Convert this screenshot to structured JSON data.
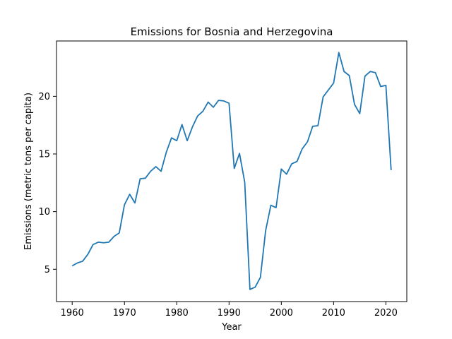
{
  "chart_data": {
    "type": "line",
    "title": "Emissions for Bosnia and Herzegovina",
    "xlabel": "Year",
    "ylabel": "Emissions (metric tons per capita)",
    "xlim": [
      1957,
      2024
    ],
    "ylim": [
      2.2,
      24.8
    ],
    "x_ticks": [
      1960,
      1970,
      1980,
      1990,
      2000,
      2010,
      2020
    ],
    "y_ticks": [
      5,
      10,
      15,
      20
    ],
    "grid": false,
    "line_color": "#1f77b4",
    "series": [
      {
        "x": [
          1960,
          1961,
          1962,
          1963,
          1964,
          1965,
          1966,
          1967,
          1968,
          1969,
          1970,
          1971,
          1972,
          1973,
          1974,
          1975,
          1976,
          1977,
          1978,
          1979,
          1980,
          1981,
          1982,
          1983,
          1984,
          1985,
          1986,
          1987,
          1988,
          1989,
          1990,
          1991,
          1992,
          1993,
          1994,
          1995,
          1996,
          1997,
          1998,
          1999,
          2000,
          2001,
          2002,
          2003,
          2004,
          2005,
          2006,
          2007,
          2008,
          2009,
          2010,
          2011,
          2012,
          2013,
          2014,
          2015,
          2016,
          2017,
          2018,
          2019,
          2020,
          2021
        ],
        "values": [
          5.3,
          5.55,
          5.7,
          6.3,
          7.15,
          7.35,
          7.3,
          7.35,
          7.85,
          8.15,
          10.6,
          11.5,
          10.75,
          12.85,
          12.9,
          13.5,
          13.9,
          13.5,
          15.15,
          16.4,
          16.15,
          17.55,
          16.15,
          17.35,
          18.3,
          18.7,
          19.5,
          19.05,
          19.65,
          19.6,
          19.4,
          13.75,
          15.05,
          12.55,
          3.25,
          3.45,
          4.3,
          8.35,
          10.55,
          10.35,
          13.7,
          13.25,
          14.15,
          14.35,
          15.45,
          16.05,
          17.4,
          17.45,
          19.95,
          20.55,
          21.15,
          23.8,
          22.15,
          21.8,
          19.3,
          18.5,
          21.75,
          22.15,
          22.05,
          20.85,
          20.95,
          13.6
        ]
      }
    ]
  }
}
